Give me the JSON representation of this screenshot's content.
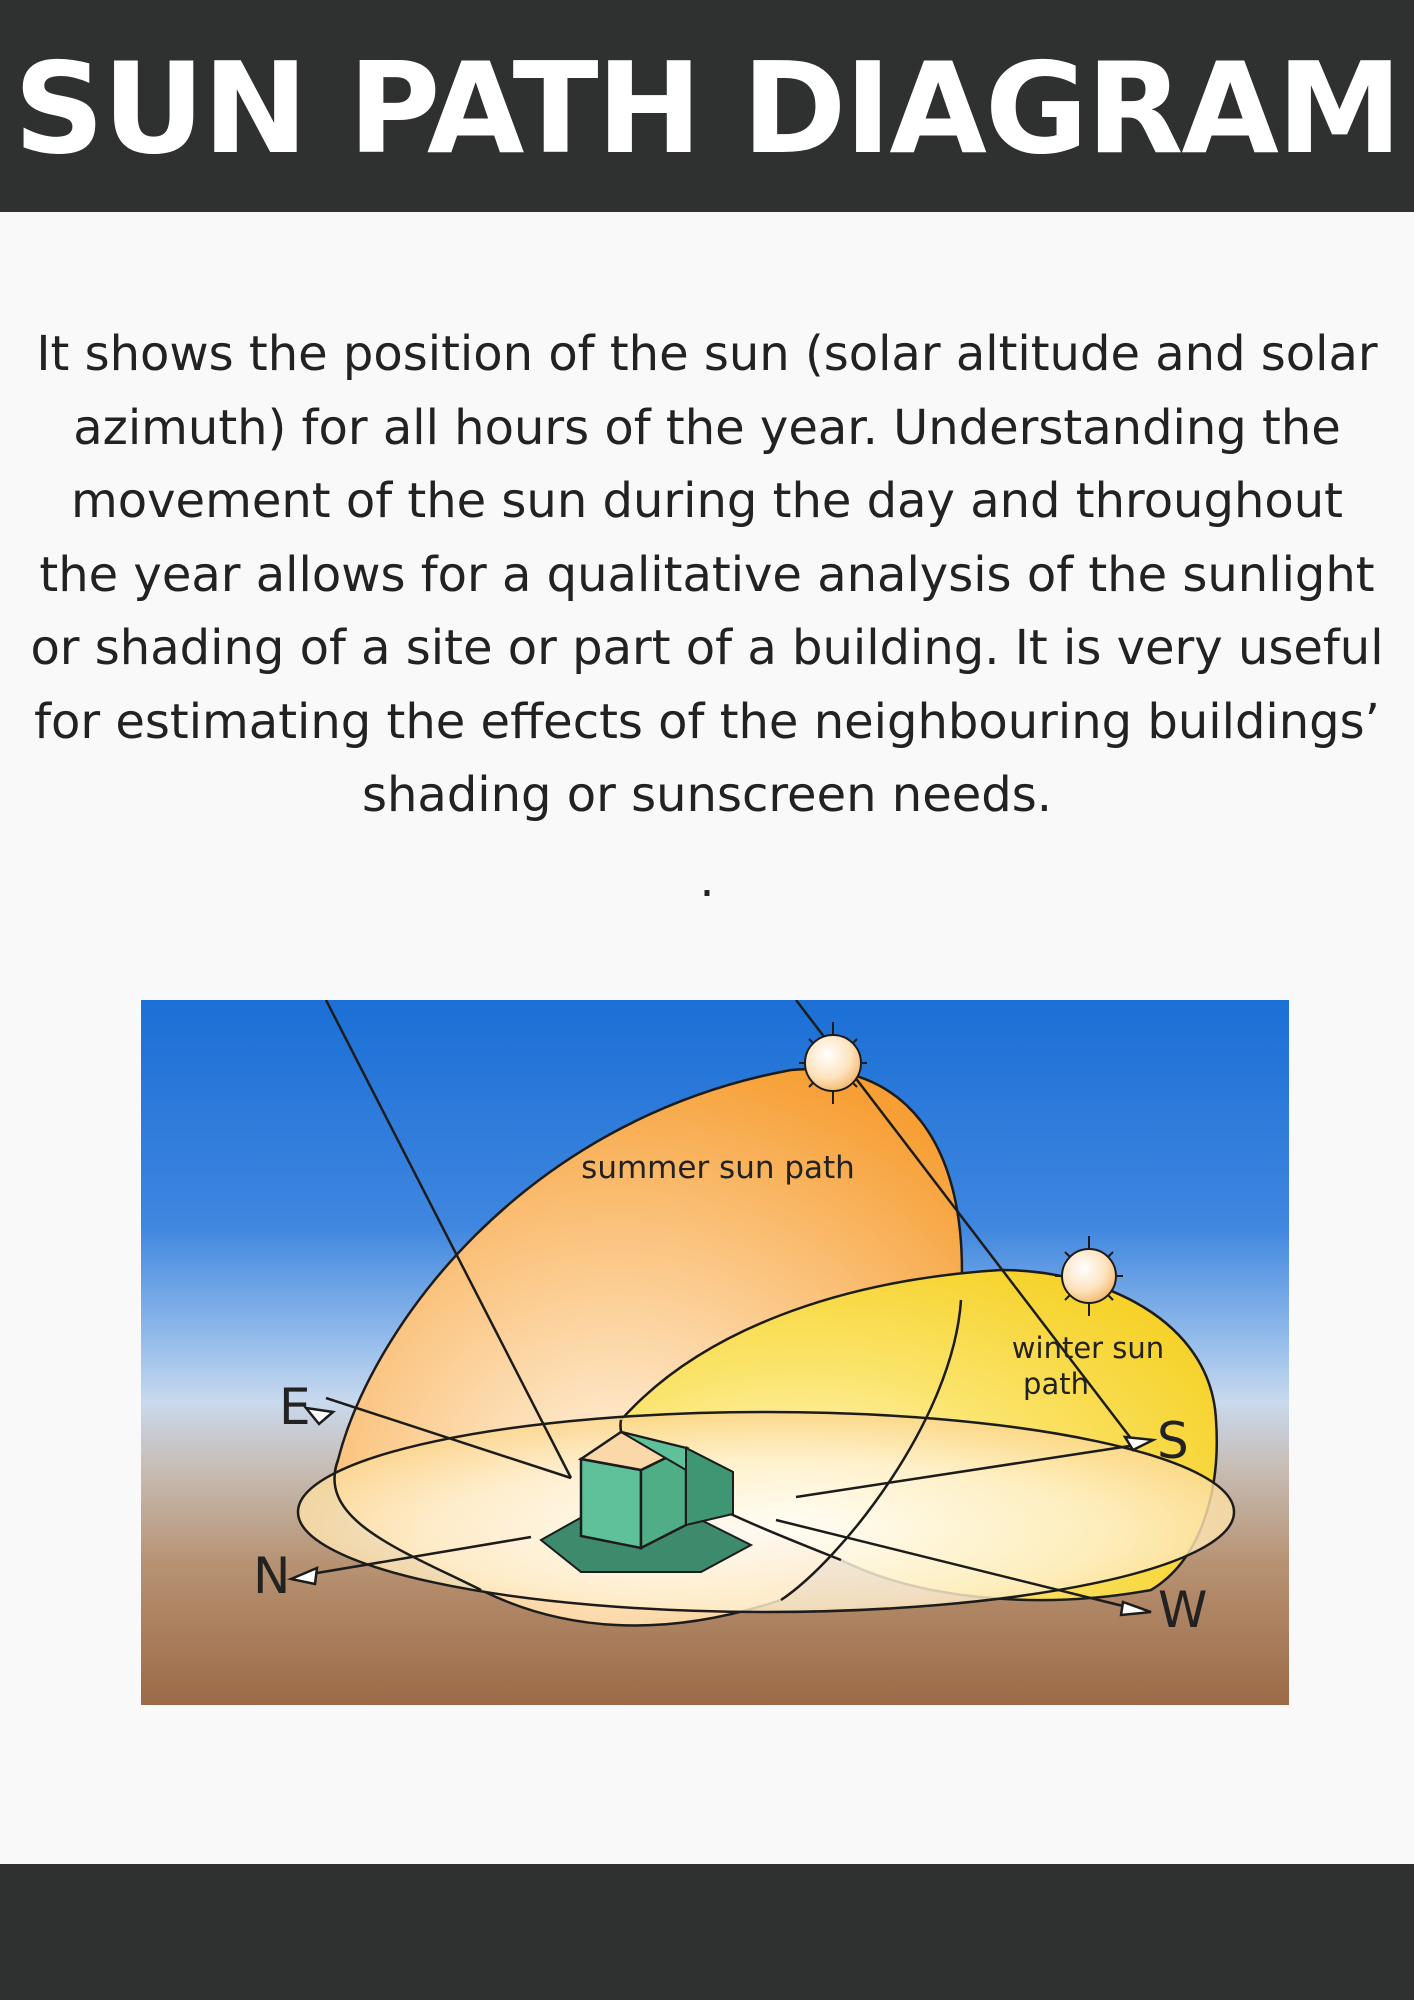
{
  "header": {
    "title": "SUN PATH DIAGRAM"
  },
  "intro": {
    "paragraph": "It shows the position of the sun (solar altitude and solar azimuth) for all hours of the year. Understanding the movement of the sun during the day and throughout the year allows for a qualitative analysis of the sunlight or shading of a site or part of a building. It is very useful for estimating the effects of the neighbouring buildings’ shading or sunscreen needs.",
    "trailing_mark": "."
  },
  "diagram": {
    "summer_label": "summer sun path",
    "winter_label_line1": "winter sun",
    "winter_label_line2": "path",
    "compass": {
      "east": "E",
      "north": "N",
      "south": "S",
      "west": "W"
    },
    "colors": {
      "sky_top": "#1b6fd6",
      "ground": "#9c6a47",
      "summer_path": "#f7a440",
      "winter_path": "#f9dc3c",
      "house": "#5fc199"
    }
  },
  "theme": {
    "band_color": "#2e312f",
    "page_background": "#f9f9f9"
  }
}
